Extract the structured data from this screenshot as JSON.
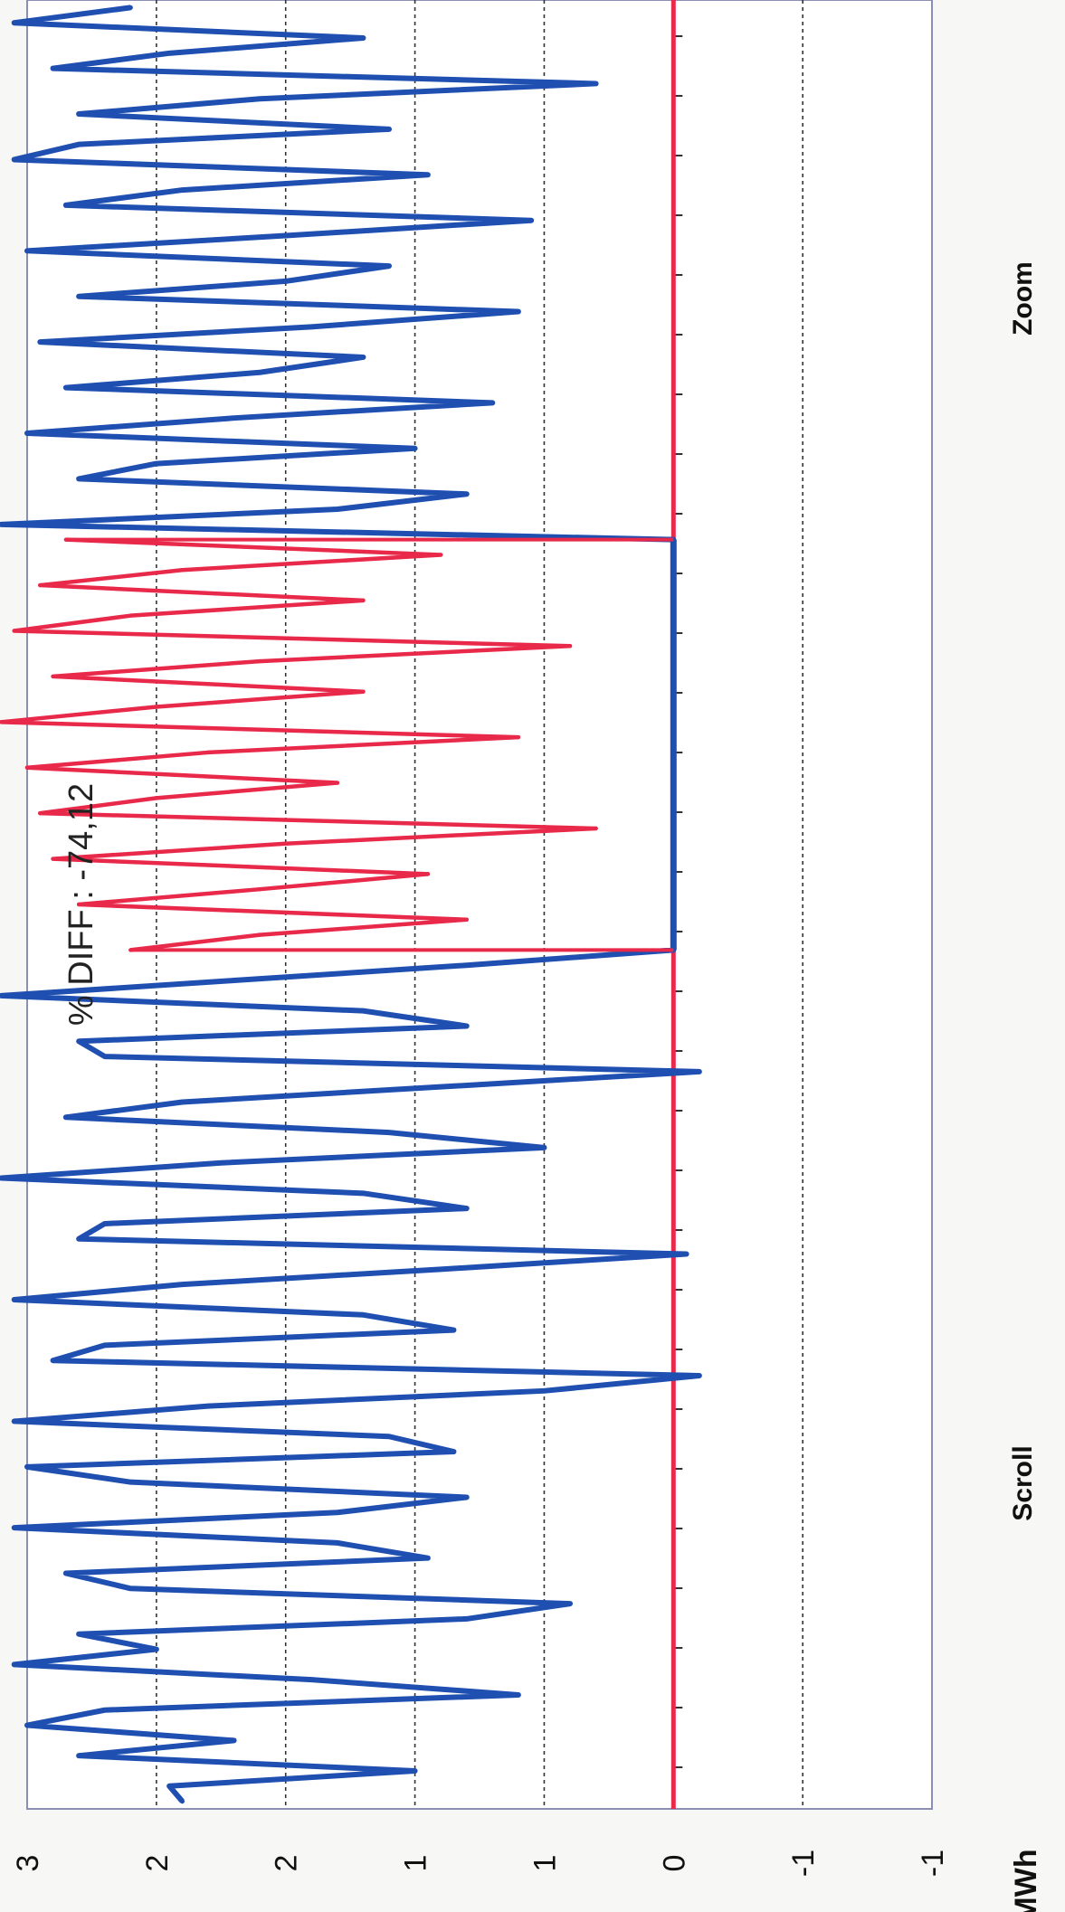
{
  "chart_data": {
    "type": "line",
    "title": "% DIFF : -74,12",
    "ylabel": "MWh",
    "yticks": [
      "-1",
      "-1",
      "0",
      "1",
      "1",
      "2",
      "2",
      "3"
    ],
    "ylim": [
      -1,
      2.5
    ],
    "grid": "horizontal dashed lines at tick positions",
    "selection_range_index": [
      56,
      84
    ],
    "series": [
      {
        "color": "#1f4fb0",
        "values": [
          1.9,
          1.95,
          1.0,
          2.3,
          1.7,
          2.5,
          2.2,
          0.6,
          1.4,
          2.55,
          2.0,
          2.3,
          0.8,
          0.4,
          2.1,
          2.35,
          0.95,
          1.3,
          2.55,
          1.3,
          0.8,
          2.1,
          2.5,
          0.85,
          1.1,
          2.55,
          1.8,
          0.5,
          -0.1,
          2.4,
          2.2,
          0.85,
          1.2,
          2.55,
          1.9,
          0.9,
          -0.05,
          2.3,
          2.2,
          0.8,
          1.2,
          2.6,
          1.75,
          0.5,
          1.1,
          2.35,
          1.9,
          0.9,
          -0.1,
          2.2,
          2.3,
          0.8,
          1.2,
          2.6,
          1.7,
          0.8,
          0.0,
          0.0,
          0.0,
          0.0,
          0.0,
          0.0,
          0.0,
          0.0,
          0.0,
          0.0,
          0.0,
          0.0,
          0.0,
          0.0,
          0.0,
          0.0,
          0.0,
          0.0,
          0.0,
          0.0,
          0.0,
          0.0,
          0.0,
          0.0,
          0.0,
          0.0,
          0.0,
          0.0,
          2.6,
          1.3,
          0.8,
          2.3,
          2.0,
          1.0,
          2.5,
          1.7,
          0.7,
          2.35,
          1.6,
          1.2,
          2.45,
          1.4,
          0.6,
          2.3,
          1.5,
          1.1,
          2.5,
          1.5,
          0.55,
          2.35,
          1.9,
          0.95,
          2.55,
          2.3,
          1.1,
          2.3,
          1.6,
          0.3,
          2.4,
          1.95,
          1.2,
          2.55,
          2.1
        ],
        "baseline": 0
      },
      {
        "color": "#e8294a",
        "values": [
          2.1,
          1.6,
          0.8,
          2.3,
          1.6,
          0.95,
          2.4,
          1.5,
          0.3,
          2.45,
          2.0,
          1.3,
          2.5,
          1.8,
          0.6,
          2.6,
          2.0,
          1.2,
          2.4,
          1.6,
          0.4,
          2.55,
          2.1,
          1.2,
          2.45,
          1.9,
          0.9,
          2.35
        ],
        "baseline": 0
      }
    ]
  },
  "controls": {
    "scroll_label": "Scroll",
    "zoom_label": "Zoom"
  }
}
